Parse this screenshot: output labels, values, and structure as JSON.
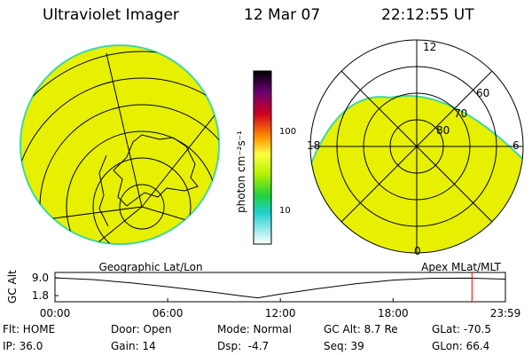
{
  "header": {
    "title": "Ultraviolet Imager",
    "date": "12 Mar 07",
    "time": "22:12:55 UT"
  },
  "colorbar": {
    "label": "photon cm⁻²s⁻¹",
    "ticks": [
      "100",
      "10"
    ]
  },
  "geo_panel": {
    "caption": "Geographic Lat/Lon"
  },
  "polar_panel": {
    "caption": "Apex MLat/MLT",
    "mlt_labels": [
      "12",
      "18",
      "6",
      "0"
    ],
    "mlat_labels": [
      "60",
      "70",
      "80"
    ]
  },
  "chart_data": {
    "type": "line",
    "ylabel": "GC Alt",
    "x": [
      0,
      2,
      4,
      6,
      8,
      10,
      10.8,
      12,
      14,
      16,
      18,
      20,
      22,
      23.98
    ],
    "series": [
      {
        "color": "#000000",
        "values": [
          9.0,
          8.3,
          7.0,
          5.4,
          3.6,
          1.6,
          0.9,
          2.4,
          4.6,
          6.6,
          8.1,
          8.8,
          8.9,
          8.5
        ]
      }
    ],
    "xlim": [
      0,
      23.98
    ],
    "xticks": [
      {
        "value": 0,
        "label": "00:00"
      },
      {
        "value": 6,
        "label": "06:00"
      },
      {
        "value": 12,
        "label": "12:00"
      },
      {
        "value": 18,
        "label": "18:00"
      },
      {
        "value": 23.98,
        "label": "23:59"
      }
    ],
    "ylim": [
      -0.7,
      11.2
    ],
    "yticks": [
      {
        "value": 9,
        "label": "9.0"
      },
      1.8
    ],
    "marker": 22.2,
    "marker_color": "#e00000"
  },
  "footer": {
    "rows": [
      [
        "Flt: HOME",
        "Door: Open",
        "Mode: Normal",
        "GC Alt: 8.7 Re",
        "GLat: -70.5"
      ],
      [
        "IP: 36.0",
        "Gain: 14",
        "Dsp:  -4.7",
        "Seq: 39",
        "GLon: 66.4"
      ]
    ]
  }
}
